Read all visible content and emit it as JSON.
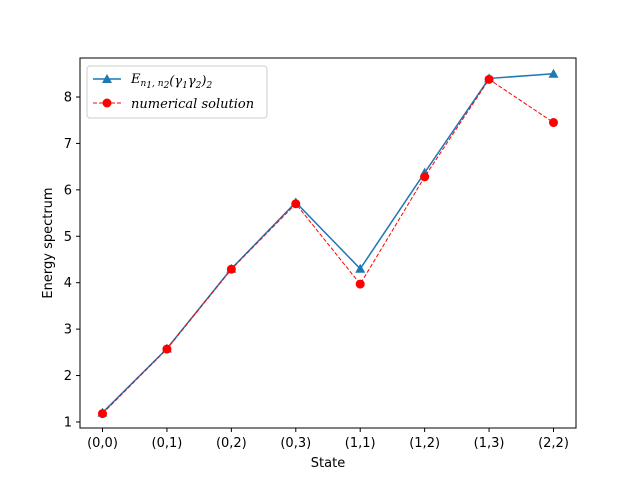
{
  "chart_data": {
    "type": "line",
    "categories": [
      "(0,0)",
      "(0,1)",
      "(0,2)",
      "(0,3)",
      "(1,1)",
      "(1,2)",
      "(1,3)",
      "(2,2)"
    ],
    "series": [
      {
        "name": "E_{n1,n2}(γ1γ2)2",
        "values": [
          1.2,
          2.58,
          4.3,
          5.73,
          4.3,
          6.37,
          8.4,
          8.5
        ],
        "color": "#1f77b4",
        "line_style": "solid",
        "marker": "triangle"
      },
      {
        "name": "numerical solution",
        "values": [
          1.18,
          2.57,
          4.29,
          5.7,
          3.97,
          6.28,
          8.38,
          7.45
        ],
        "color": "#ff0000",
        "line_style": "dashed",
        "marker": "circle"
      }
    ],
    "title": "",
    "xlabel": "State",
    "ylabel": "Energy spectrum",
    "ylim": [
      0.87,
      8.84
    ],
    "yticks": [
      "1",
      "2",
      "3",
      "4",
      "5",
      "6",
      "7",
      "8"
    ],
    "legend_position": "upper-left",
    "grid": false
  }
}
